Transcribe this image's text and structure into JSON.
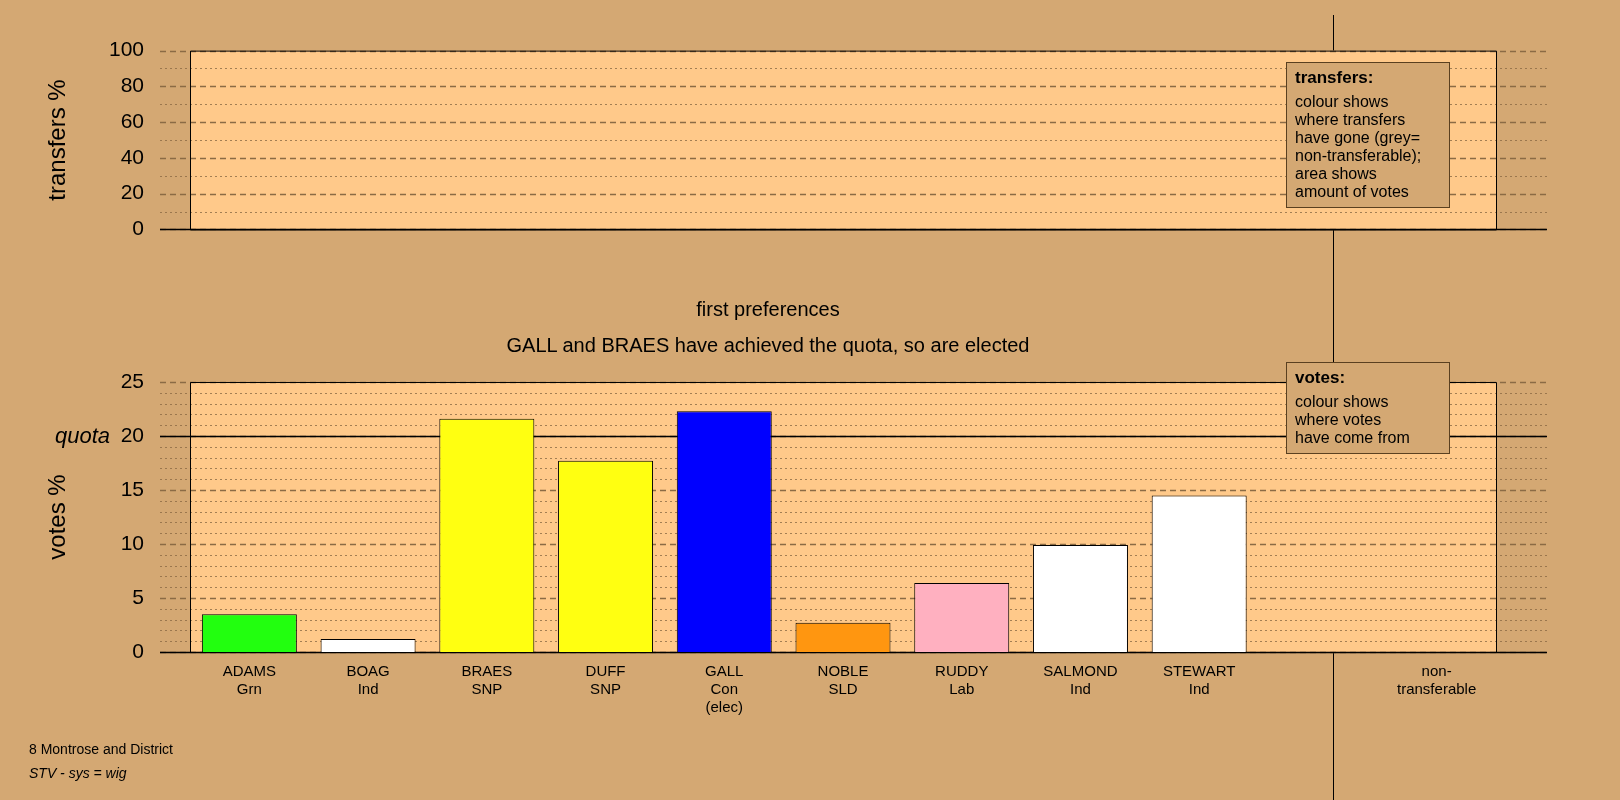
{
  "chart_data": [
    {
      "type": "bar",
      "ylabel": "transfers %",
      "categories": [
        null,
        null,
        null,
        null,
        null,
        null,
        null,
        null,
        null,
        null,
        null
      ],
      "values": [
        null,
        null,
        null,
        null,
        null,
        null,
        null,
        null,
        null,
        null,
        null
      ],
      "ylim": [
        0,
        100
      ],
      "yticks": [
        0,
        {
          "value": 10,
          "label": null
        },
        20,
        {
          "value": 30,
          "label": null
        },
        40,
        {
          "value": 50,
          "label": null
        },
        60,
        {
          "value": 70,
          "label": null
        },
        80,
        {
          "value": 90,
          "label": null
        },
        100
      ],
      "grid": "y",
      "tick_labels": "y",
      "annotations": [
        "transfers:\ncolour shows\nwhere transfers\nhave gone (grey=\nnon-transferable);\narea shows\namount of votes"
      ]
    },
    {
      "type": "bar",
      "title": "first preferences",
      "subtitle": "GALL and BRAES have achieved the quota, so are elected",
      "ylabel": "votes %",
      "categories": [
        "ADAMS\nGrn",
        "BOAG\nInd",
        "BRAES\nSNP",
        "DUFF\nSNP",
        "GALL\nCon\n(elec)",
        "NOBLE\nSLD",
        "RUDDY\nLab",
        "SALMOND\nInd",
        "STEWART\nInd",
        null,
        "non-\ntransferable"
      ],
      "values": [
        3.5,
        1.2,
        21.6,
        17.7,
        22.3,
        2.7,
        6.4,
        9.9,
        14.5,
        null,
        null
      ],
      "colors": [
        "#22ff0f",
        "#ffffff",
        "#ffff11",
        "#ffff11",
        "#0000ff",
        "#ff9610",
        "#ffb0c0",
        "#ffffff",
        "#ffffff",
        null,
        null
      ],
      "ylim": [
        0,
        25
      ],
      "yticks": [
        0,
        {
          "value": 1,
          "label": null
        },
        {
          "value": 2,
          "label": null
        },
        {
          "value": 3,
          "label": null
        },
        {
          "value": 4,
          "label": null
        },
        5,
        {
          "value": 6,
          "label": null
        },
        {
          "value": 7,
          "label": null
        },
        {
          "value": 8,
          "label": null
        },
        {
          "value": 9,
          "label": null
        },
        10,
        {
          "value": 11,
          "label": null
        },
        {
          "value": 12,
          "label": null
        },
        {
          "value": 13,
          "label": null
        },
        {
          "value": 14,
          "label": null
        },
        15,
        {
          "value": 16,
          "label": null
        },
        {
          "value": 17,
          "label": null
        },
        {
          "value": 18,
          "label": null
        },
        {
          "value": 19,
          "label": null
        },
        20,
        {
          "value": 21,
          "label": null
        },
        {
          "value": 22,
          "label": null
        },
        {
          "value": 23,
          "label": null
        },
        {
          "value": 24,
          "label": null
        },
        25
      ],
      "grid": "y",
      "ref_lines": [
        {
          "axis": "y",
          "value": 20,
          "label": "quota"
        }
      ],
      "annotations": [
        "votes:\ncolour shows\nwhere votes\nhave come from",
        "8 Montrose and District",
        "STV - sys = wig"
      ]
    }
  ]
}
